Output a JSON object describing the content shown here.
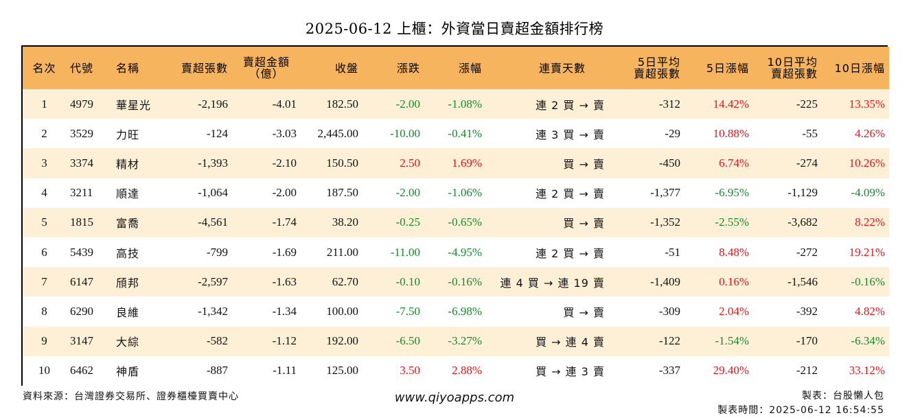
{
  "title": "2025-06-12 上櫃：外資當日賣超金額排行榜",
  "headers": {
    "rank": "名次",
    "code": "代號",
    "name": "名稱",
    "sell_shares": "賣超張數",
    "sell_amount_1": "賣超金額",
    "sell_amount_2": "（億）",
    "close": "收盤",
    "change": "漲跌",
    "change_pct": "漲幅",
    "streak": "連賣天數",
    "avg5_1": "5日平均",
    "avg5_2": "賣超張數",
    "chg5": "5日漲幅",
    "avg10_1": "10日平均",
    "avg10_2": "賣超張數",
    "chg10": "10日漲幅"
  },
  "rows": [
    {
      "rank": "1",
      "code": "4979",
      "name": "華星光",
      "sell_shares": "-2,196",
      "sell_amount": "-4.01",
      "close": "182.50",
      "change": "-2.00",
      "change_pct": "-1.08%",
      "streak": "連 2 買 → 賣",
      "avg5": "-312",
      "chg5": "14.42%",
      "avg10": "-225",
      "chg10": "13.35%"
    },
    {
      "rank": "2",
      "code": "3529",
      "name": "力旺",
      "sell_shares": "-124",
      "sell_amount": "-3.03",
      "close": "2,445.00",
      "change": "-10.00",
      "change_pct": "-0.41%",
      "streak": "連 3 買 → 賣",
      "avg5": "-29",
      "chg5": "10.88%",
      "avg10": "-55",
      "chg10": "4.26%"
    },
    {
      "rank": "3",
      "code": "3374",
      "name": "精材",
      "sell_shares": "-1,393",
      "sell_amount": "-2.10",
      "close": "150.50",
      "change": "2.50",
      "change_pct": "1.69%",
      "streak": "買 → 賣",
      "avg5": "-450",
      "chg5": "6.74%",
      "avg10": "-274",
      "chg10": "10.26%"
    },
    {
      "rank": "4",
      "code": "3211",
      "name": "順達",
      "sell_shares": "-1,064",
      "sell_amount": "-2.00",
      "close": "187.50",
      "change": "-2.00",
      "change_pct": "-1.06%",
      "streak": "連 2 買 → 賣",
      "avg5": "-1,377",
      "chg5": "-6.95%",
      "avg10": "-1,129",
      "chg10": "-4.09%"
    },
    {
      "rank": "5",
      "code": "1815",
      "name": "富喬",
      "sell_shares": "-4,561",
      "sell_amount": "-1.74",
      "close": "38.20",
      "change": "-0.25",
      "change_pct": "-0.65%",
      "streak": "買 → 賣",
      "avg5": "-1,352",
      "chg5": "-2.55%",
      "avg10": "-3,682",
      "chg10": "8.22%"
    },
    {
      "rank": "6",
      "code": "5439",
      "name": "高技",
      "sell_shares": "-799",
      "sell_amount": "-1.69",
      "close": "211.00",
      "change": "-11.00",
      "change_pct": "-4.95%",
      "streak": "連 2 買 → 賣",
      "avg5": "-51",
      "chg5": "8.48%",
      "avg10": "-272",
      "chg10": "19.21%"
    },
    {
      "rank": "7",
      "code": "6147",
      "name": "頎邦",
      "sell_shares": "-2,597",
      "sell_amount": "-1.63",
      "close": "62.70",
      "change": "-0.10",
      "change_pct": "-0.16%",
      "streak": "連 4 買 → 連 19 賣",
      "avg5": "-1,409",
      "chg5": "0.16%",
      "avg10": "-1,546",
      "chg10": "-0.16%"
    },
    {
      "rank": "8",
      "code": "6290",
      "name": "良維",
      "sell_shares": "-1,342",
      "sell_amount": "-1.34",
      "close": "100.00",
      "change": "-7.50",
      "change_pct": "-6.98%",
      "streak": "買 → 賣",
      "avg5": "-309",
      "chg5": "2.04%",
      "avg10": "-392",
      "chg10": "4.82%"
    },
    {
      "rank": "9",
      "code": "3147",
      "name": "大綜",
      "sell_shares": "-582",
      "sell_amount": "-1.12",
      "close": "192.00",
      "change": "-6.50",
      "change_pct": "-3.27%",
      "streak": "買 → 連 4 賣",
      "avg5": "-122",
      "chg5": "-1.54%",
      "avg10": "-170",
      "chg10": "-6.34%"
    },
    {
      "rank": "10",
      "code": "6462",
      "name": "神盾",
      "sell_shares": "-887",
      "sell_amount": "-1.11",
      "close": "125.00",
      "change": "3.50",
      "change_pct": "2.88%",
      "streak": "買 → 連 3 賣",
      "avg5": "-337",
      "chg5": "29.40%",
      "avg10": "-212",
      "chg10": "33.12%"
    }
  ],
  "colors": {
    "up": "#e8141c",
    "down": "#138a2c",
    "header_bg": "#f6b45f",
    "stripe_bg": "#fdf0d6"
  },
  "footer": {
    "source": "資料來源：台灣證券交易所、證券櫃檯買賣中心",
    "website": "www.qiyoapps.com",
    "maker": "製表：台股懶人包",
    "time": "製表時間：2025-06-12 16:54:55"
  }
}
